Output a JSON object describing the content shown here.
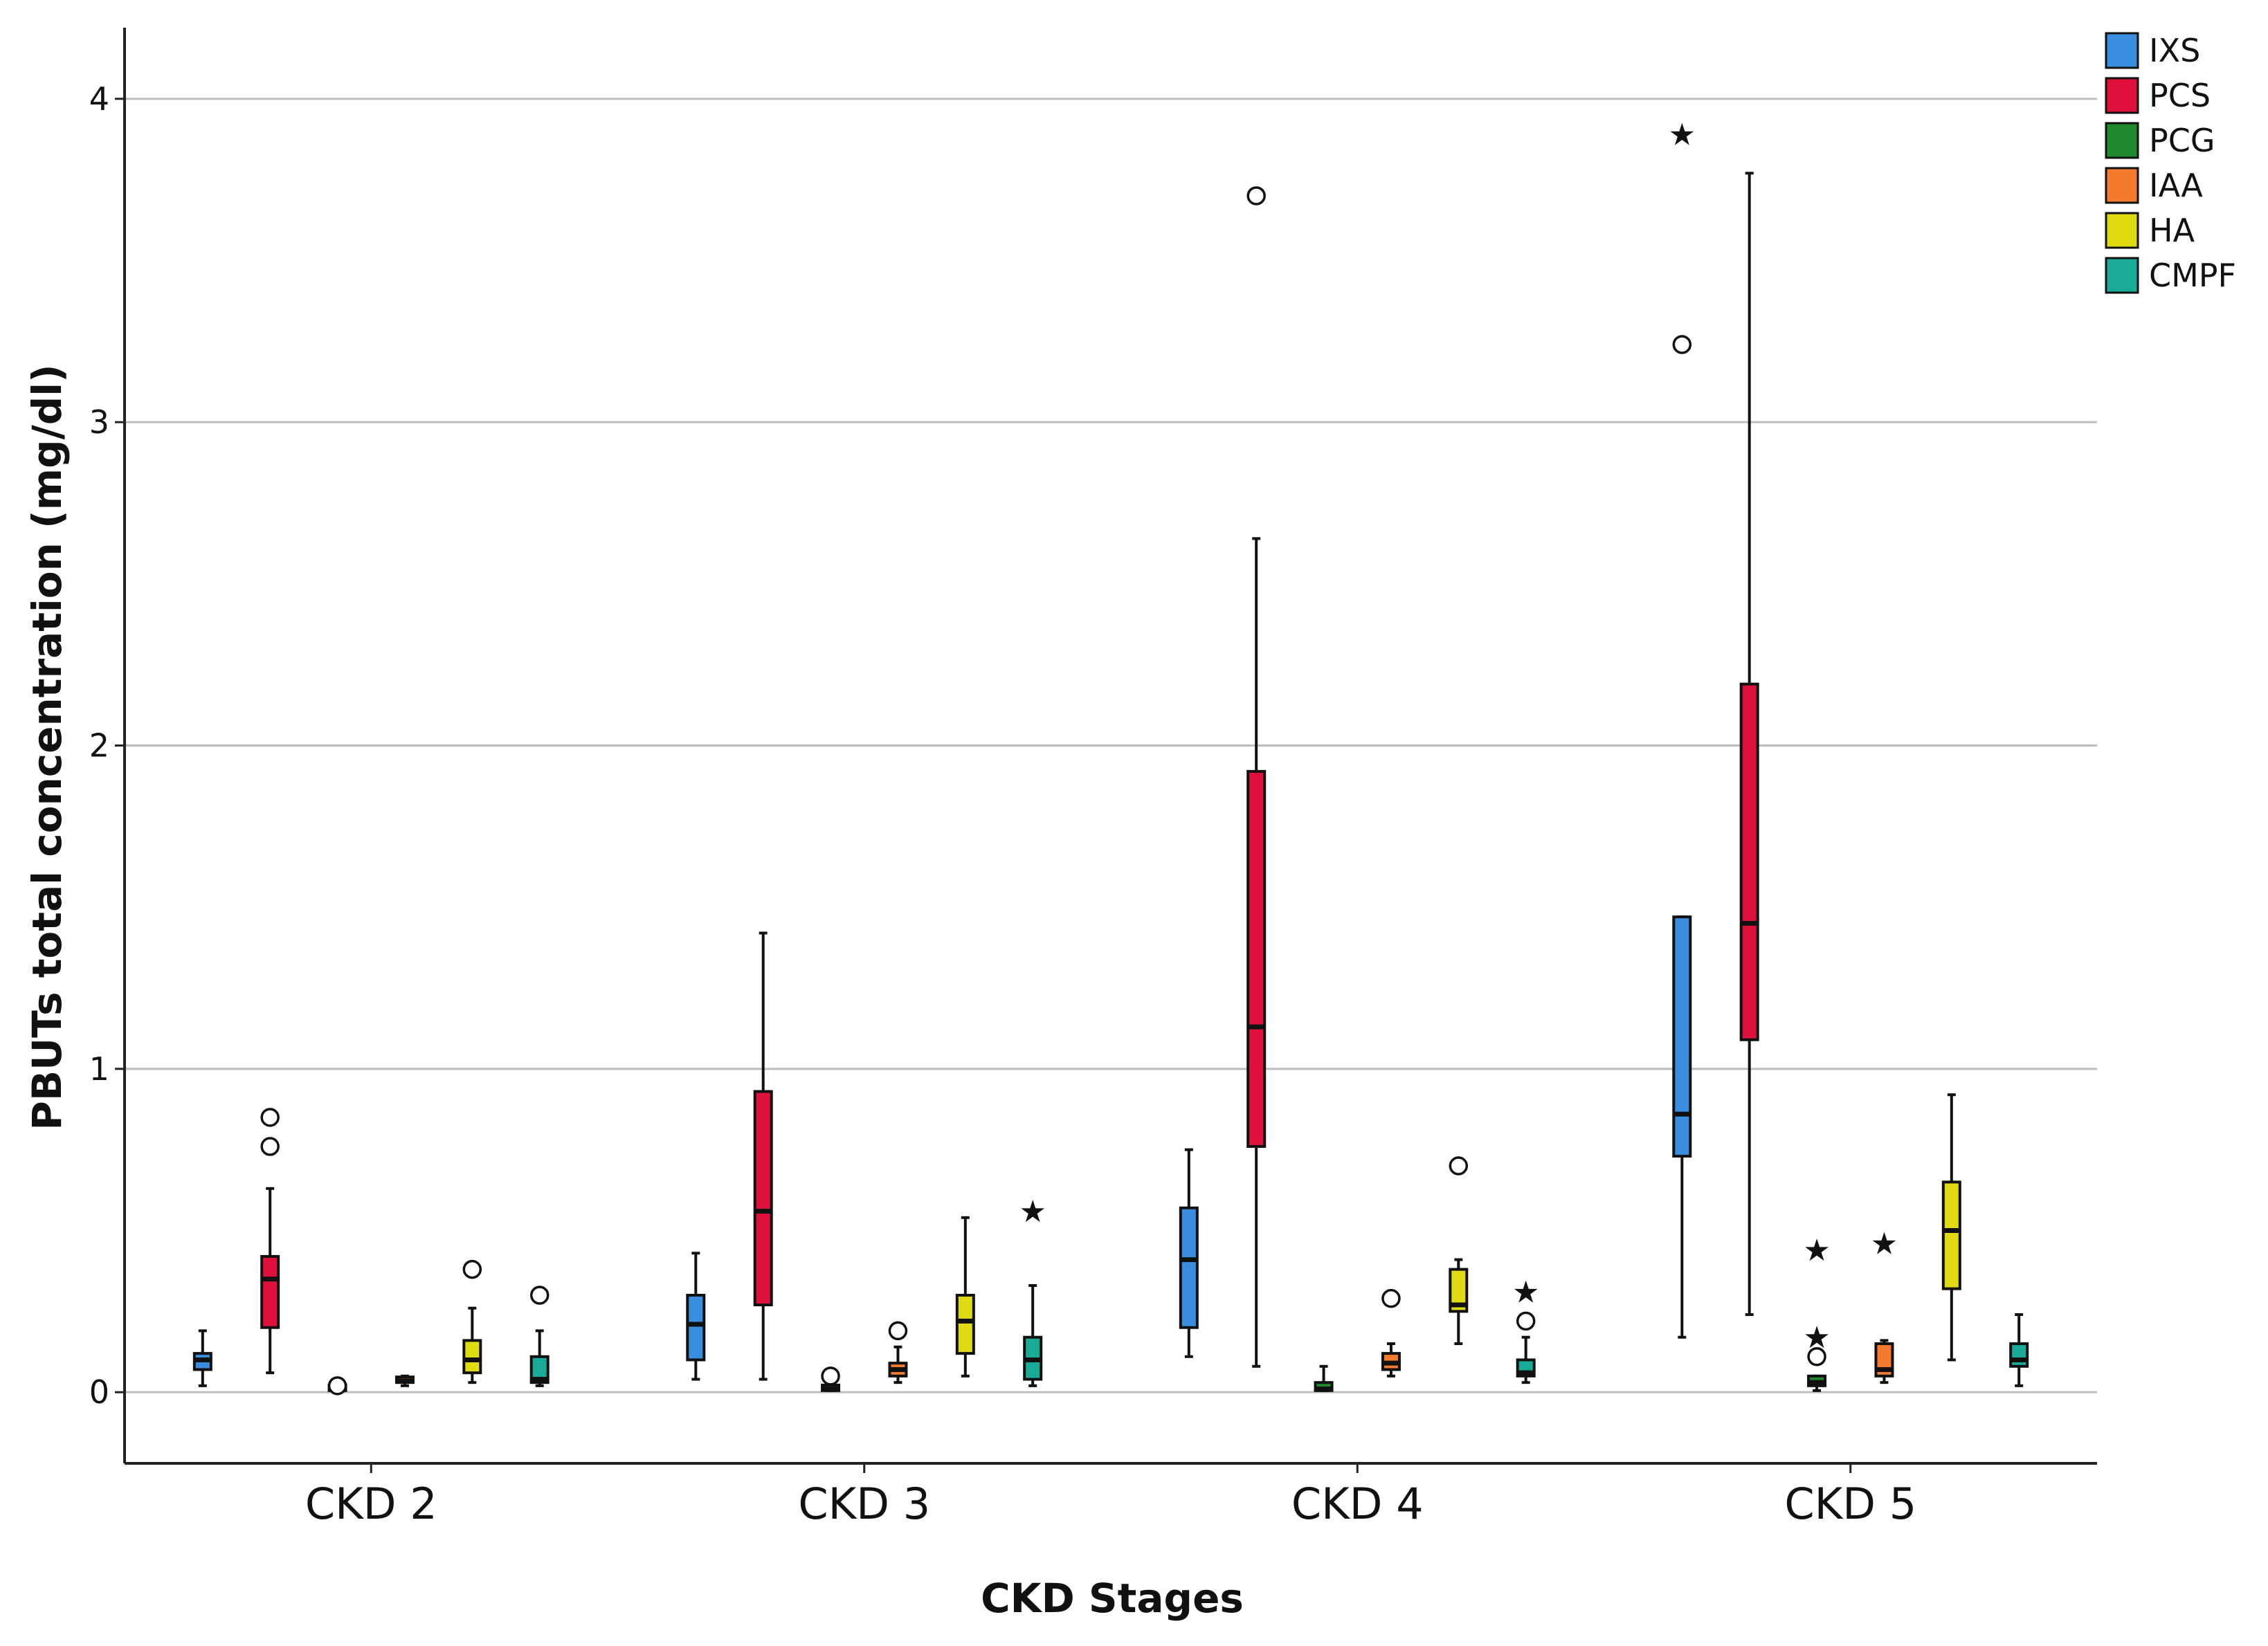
{
  "chart_data": {
    "type": "boxplot",
    "xlabel": "CKD Stages",
    "ylabel": "PBUTs total concentration (mg/dl)",
    "ylim": [
      -0.22,
      4.22
    ],
    "yticks": [
      0,
      1,
      2,
      3,
      4
    ],
    "ytick_labels": [
      "0",
      "1",
      "2",
      "3",
      "4"
    ],
    "categories": [
      "CKD 2",
      "CKD 3",
      "CKD 4",
      "CKD 5"
    ],
    "legend": {
      "placement": "top-right"
    },
    "series": [
      {
        "name": "IXS",
        "color": "#3a8ee0",
        "boxes": [
          {
            "min": 0.02,
            "q1": 0.07,
            "median": 0.1,
            "q3": 0.12,
            "max": 0.19,
            "outliers": [],
            "extremes": []
          },
          {
            "min": 0.04,
            "q1": 0.1,
            "median": 0.21,
            "q3": 0.3,
            "max": 0.43,
            "outliers": [],
            "extremes": []
          },
          {
            "min": 0.11,
            "q1": 0.2,
            "median": 0.41,
            "q3": 0.57,
            "max": 0.75,
            "outliers": [],
            "extremes": []
          },
          {
            "min": 0.17,
            "q1": 0.73,
            "median": 0.86,
            "q3": 1.47,
            "max": 1.47,
            "outliers": [
              3.24
            ],
            "extremes": [
              3.9
            ]
          }
        ]
      },
      {
        "name": "PCS",
        "color": "#e0103c",
        "boxes": [
          {
            "min": 0.06,
            "q1": 0.2,
            "median": 0.35,
            "q3": 0.42,
            "max": 0.63,
            "outliers": [
              0.76,
              0.85
            ],
            "extremes": []
          },
          {
            "min": 0.04,
            "q1": 0.27,
            "median": 0.56,
            "q3": 0.93,
            "max": 1.42,
            "outliers": [],
            "extremes": []
          },
          {
            "min": 0.08,
            "q1": 0.76,
            "median": 1.13,
            "q3": 1.92,
            "max": 2.64,
            "outliers": [
              3.7
            ],
            "extremes": []
          },
          {
            "min": 0.24,
            "q1": 1.09,
            "median": 1.45,
            "q3": 2.19,
            "max": 3.77,
            "outliers": [],
            "extremes": []
          }
        ]
      },
      {
        "name": "PCG",
        "color": "#1f8a2e",
        "boxes": [
          {
            "min": 0.005,
            "q1": 0.005,
            "median": 0.01,
            "q3": 0.02,
            "max": 0.02,
            "outliers": [
              0.02
            ],
            "extremes": []
          },
          {
            "min": 0.005,
            "q1": 0.005,
            "median": 0.01,
            "q3": 0.02,
            "max": 0.02,
            "outliers": [
              0.05
            ],
            "extremes": []
          },
          {
            "min": 0.005,
            "q1": 0.005,
            "median": 0.01,
            "q3": 0.03,
            "max": 0.08,
            "outliers": [],
            "extremes": []
          },
          {
            "min": 0.005,
            "q1": 0.02,
            "median": 0.03,
            "q3": 0.05,
            "max": 0.05,
            "outliers": [
              0.11
            ],
            "extremes": [
              0.18,
              0.45
            ]
          }
        ]
      },
      {
        "name": "IAA",
        "color": "#f47a2e",
        "boxes": [
          {
            "min": 0.02,
            "q1": 0.03,
            "median": 0.035,
            "q3": 0.04,
            "max": 0.05,
            "outliers": [],
            "extremes": []
          },
          {
            "min": 0.03,
            "q1": 0.05,
            "median": 0.07,
            "q3": 0.09,
            "max": 0.14,
            "outliers": [
              0.19
            ],
            "extremes": []
          },
          {
            "min": 0.05,
            "q1": 0.07,
            "median": 0.09,
            "q3": 0.12,
            "max": 0.15,
            "outliers": [
              0.29
            ],
            "extremes": []
          },
          {
            "min": 0.03,
            "q1": 0.05,
            "median": 0.07,
            "q3": 0.15,
            "max": 0.16,
            "outliers": [],
            "extremes": [
              0.47
            ]
          }
        ]
      },
      {
        "name": "HA",
        "color": "#e0da10",
        "boxes": [
          {
            "min": 0.03,
            "q1": 0.06,
            "median": 0.1,
            "q3": 0.16,
            "max": 0.26,
            "outliers": [
              0.38
            ],
            "extremes": []
          },
          {
            "min": 0.05,
            "q1": 0.12,
            "median": 0.22,
            "q3": 0.3,
            "max": 0.54,
            "outliers": [],
            "extremes": []
          },
          {
            "min": 0.15,
            "q1": 0.25,
            "median": 0.27,
            "q3": 0.38,
            "max": 0.41,
            "outliers": [
              0.7
            ],
            "extremes": []
          },
          {
            "min": 0.1,
            "q1": 0.32,
            "median": 0.5,
            "q3": 0.65,
            "max": 0.92,
            "outliers": [],
            "extremes": []
          }
        ]
      },
      {
        "name": "CMPF",
        "color": "#1aaa98",
        "boxes": [
          {
            "min": 0.02,
            "q1": 0.03,
            "median": 0.04,
            "q3": 0.11,
            "max": 0.19,
            "outliers": [
              0.3
            ],
            "extremes": []
          },
          {
            "min": 0.02,
            "q1": 0.04,
            "median": 0.1,
            "q3": 0.17,
            "max": 0.33,
            "outliers": [],
            "extremes": [
              0.57
            ]
          },
          {
            "min": 0.03,
            "q1": 0.05,
            "median": 0.06,
            "q3": 0.1,
            "max": 0.17,
            "outliers": [
              0.22
            ],
            "extremes": [
              0.32
            ]
          },
          {
            "min": 0.02,
            "q1": 0.08,
            "median": 0.1,
            "q3": 0.15,
            "max": 0.24,
            "outliers": [],
            "extremes": []
          }
        ]
      }
    ]
  }
}
